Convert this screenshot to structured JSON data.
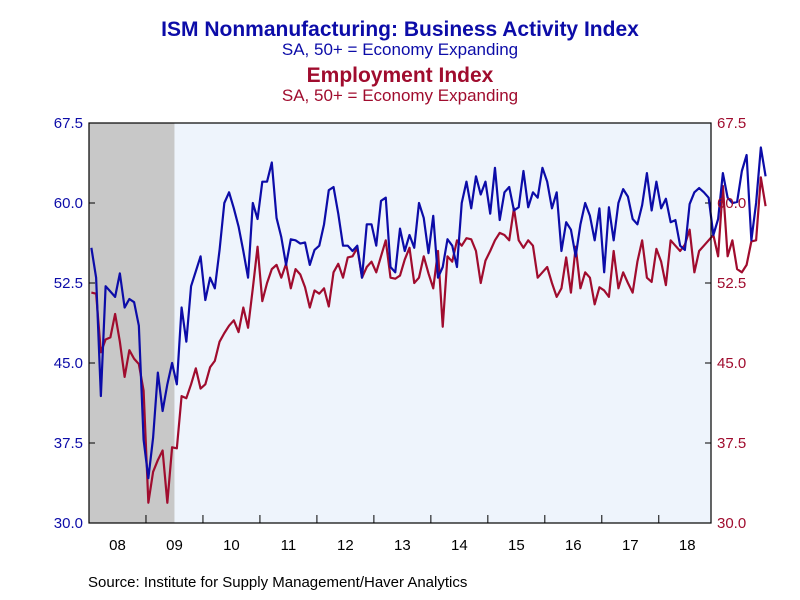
{
  "titles": {
    "series1_title": "ISM Nonmanufacturing: Business Activity Index",
    "series1_subtitle": "SA, 50+ = Economy Expanding",
    "series2_title": "Employment Index",
    "series2_subtitle": "SA, 50+ = Economy Expanding"
  },
  "source": "Source:  Institute for Supply Management/Haver Analytics",
  "chart_data": {
    "type": "line",
    "x_tick_labels": [
      "08",
      "09",
      "10",
      "11",
      "12",
      "13",
      "14",
      "15",
      "16",
      "17",
      "18"
    ],
    "x_range": [
      "2008-01",
      "2018-11"
    ],
    "y_ticks": [
      "30.0",
      "37.5",
      "45.0",
      "52.5",
      "60.0",
      "67.5"
    ],
    "ylim": [
      30,
      67.5
    ],
    "y_right_ticks": [
      "30.0",
      "37.5",
      "45.0",
      "52.5",
      "60.0",
      "67.5"
    ],
    "y_right_lim": [
      30,
      67.5
    ],
    "recession_shading": {
      "start": "2008-01",
      "end": "2009-06",
      "color": "#c8c8c8"
    },
    "plot_background": "#eef4fc",
    "series": [
      {
        "name": "ISM Nonmanufacturing: Business Activity Index",
        "axis": "left",
        "color": "#0c0ca8",
        "start": "2008-01",
        "values": [
          55.8,
          53.0,
          41.9,
          52.2,
          51.7,
          51.2,
          53.4,
          50.2,
          51.0,
          50.7,
          48.5,
          37.8,
          34.2,
          38.0,
          44.1,
          40.5,
          43.0,
          45.0,
          43.0,
          50.2,
          47.0,
          52.2,
          53.6,
          55.0,
          50.9,
          53.0,
          52.0,
          55.6,
          60.0,
          61.0,
          59.5,
          57.8,
          55.5,
          53.0,
          60.0,
          58.5,
          62.0,
          62.0,
          63.8,
          58.6,
          56.8,
          54.2,
          56.6,
          56.5,
          56.2,
          56.3,
          54.2,
          55.6,
          56.0,
          58.0,
          61.2,
          61.5,
          59.0,
          56.0,
          56.0,
          55.5,
          56.0,
          53.0,
          58.0,
          58.0,
          56.0,
          60.2,
          60.5,
          54.0,
          53.5,
          57.6,
          55.5,
          57.0,
          55.8,
          60.0,
          58.6,
          55.3,
          58.8,
          53.0,
          54.0,
          56.6,
          56.0,
          54.0,
          60.0,
          62.0,
          59.5,
          62.5,
          60.8,
          62.0,
          59.0,
          63.3,
          58.4,
          61.0,
          61.5,
          59.3,
          59.6,
          63.0,
          59.6,
          61.0,
          60.5,
          63.3,
          62.0,
          59.5,
          61.0,
          55.5,
          58.2,
          57.5,
          55.0,
          58.0,
          60.0,
          58.8,
          56.5,
          59.5,
          53.5,
          59.6,
          56.5,
          60.0,
          61.3,
          60.6,
          58.5,
          58.0,
          59.8,
          62.8,
          59.3,
          62.0,
          59.5,
          60.4,
          58.2,
          58.4,
          56.0,
          55.6,
          59.9,
          61.0,
          61.4,
          61.0,
          60.5,
          57.0,
          58.5,
          62.8,
          60.5,
          60.0,
          60.1,
          63.0,
          64.5,
          56.5,
          60.0,
          65.2,
          62.5
        ]
      },
      {
        "name": "Employment Index",
        "axis": "right",
        "color": "#a00c2e",
        "start": "2008-01",
        "values": [
          51.6,
          51.5,
          46.0,
          47.2,
          47.4,
          49.6,
          47.0,
          43.7,
          46.2,
          45.4,
          44.9,
          42.4,
          31.9,
          34.8,
          35.9,
          36.8,
          31.9,
          37.1,
          37.0,
          41.9,
          41.7,
          43.0,
          44.5,
          42.6,
          43.0,
          44.6,
          45.2,
          47.0,
          47.8,
          48.5,
          49.0,
          47.9,
          50.2,
          48.3,
          52.0,
          55.9,
          50.8,
          52.5,
          53.8,
          54.2,
          53.0,
          54.3,
          52.0,
          53.8,
          53.3,
          52.1,
          50.2,
          51.8,
          51.5,
          52.0,
          50.3,
          53.5,
          54.3,
          53.0,
          54.9,
          55.0,
          55.8,
          53.0,
          54.0,
          54.5,
          53.5,
          55.0,
          56.5,
          53.0,
          52.9,
          53.2,
          54.7,
          55.8,
          52.5,
          53.0,
          55.0,
          53.4,
          52.0,
          55.5,
          48.4,
          55.0,
          54.5,
          56.5,
          56.0,
          56.7,
          56.6,
          55.5,
          52.5,
          54.6,
          55.5,
          56.5,
          57.2,
          57.0,
          56.5,
          59.5,
          56.5,
          55.8,
          56.5,
          56.0,
          53.0,
          53.5,
          54.0,
          52.5,
          51.2,
          52.0,
          54.9,
          51.6,
          55.9,
          52.0,
          53.5,
          53.0,
          50.5,
          52.1,
          51.8,
          51.2,
          55.5,
          52.0,
          53.5,
          52.5,
          51.6,
          54.5,
          56.5,
          53.0,
          52.6,
          55.7,
          54.5,
          52.3,
          56.5,
          56.0,
          55.5,
          56.1,
          57.5,
          53.5,
          55.5,
          56.0,
          56.5,
          57.0,
          55.0,
          61.6,
          55.0,
          56.5,
          53.8,
          53.5,
          54.2,
          56.4,
          56.5,
          62.4,
          59.7
        ]
      }
    ]
  }
}
